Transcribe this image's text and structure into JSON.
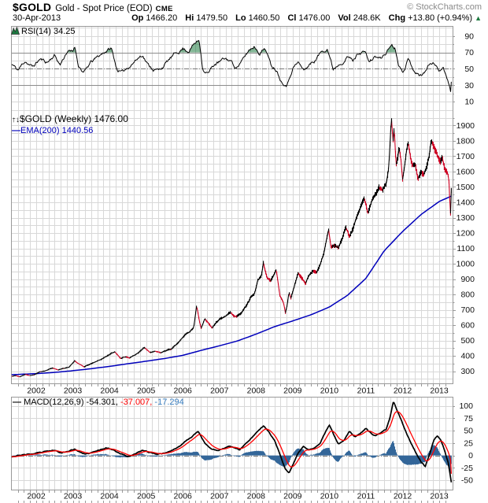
{
  "header": {
    "symbol": "$GOLD",
    "description": "Gold - Spot Price (EOD)",
    "exchange": "CME",
    "copyright": "© StockCharts.com",
    "date": "30-Apr-2013",
    "quote": [
      {
        "label": "Op",
        "value": "1466.20"
      },
      {
        "label": "Hi",
        "value": "1479.50"
      },
      {
        "label": "Lo",
        "value": "1460.50"
      },
      {
        "label": "Cl",
        "value": "1476.00"
      },
      {
        "label": "Vol",
        "value": "248.6K"
      },
      {
        "label": "Chg",
        "value": "+13.80 (+0.94%)"
      }
    ],
    "chg_icon": "▲",
    "chg_direction": "up"
  },
  "legend": {
    "rsi": {
      "label": "RSI(14)",
      "value": "34.25"
    },
    "price": {
      "label": "$GOLD (Weekly)",
      "value": "1476.00"
    },
    "ema": {
      "label": "EMA(200)",
      "value": "1440.56"
    },
    "macd": {
      "label": "MACD(12,26,9)",
      "v1": "-54.301",
      "v2": "-37.007",
      "v3": "-17.294"
    }
  },
  "colors": {
    "price_up": "#000000",
    "price_down": "#cc0022",
    "ema": "#0000bb",
    "rsi": "#000000",
    "rsi_fill": "#1d7a40",
    "macd": "#000000",
    "signal": "#ff0000",
    "histogram": "#336699",
    "legend_hist": "#3a7fc1",
    "grid": "#d8d8d8",
    "axis": "#999999",
    "level": "#8c8c8c",
    "dashdot": "#777777",
    "chg_up": "#1c7a3f"
  },
  "x_axis": {
    "start": 2001.33,
    "end": 2013.33,
    "year_labels": [
      "2002",
      "2003",
      "2004",
      "2005",
      "2006",
      "2007",
      "2008",
      "2009",
      "2010",
      "2011",
      "2012",
      "2013"
    ]
  },
  "chart_data": [
    {
      "id": "rsi",
      "type": "line",
      "title": "RSI(14)",
      "current": 34.25,
      "y_range": [
        0,
        100
      ],
      "yticks": [
        90,
        70,
        50,
        30,
        10
      ],
      "levels": {
        "overbought": 70,
        "mid": 50,
        "oversold": 30
      },
      "texture": 3.2,
      "anchors": [
        [
          2001.35,
          55
        ],
        [
          2001.5,
          48
        ],
        [
          2001.7,
          60
        ],
        [
          2001.9,
          52
        ],
        [
          2002.1,
          62
        ],
        [
          2002.3,
          58
        ],
        [
          2002.5,
          67
        ],
        [
          2002.65,
          55
        ],
        [
          2002.85,
          72
        ],
        [
          2003.0,
          70
        ],
        [
          2003.05,
          78
        ],
        [
          2003.15,
          55
        ],
        [
          2003.3,
          45
        ],
        [
          2003.5,
          58
        ],
        [
          2003.7,
          65
        ],
        [
          2003.9,
          72
        ],
        [
          2004.05,
          75
        ],
        [
          2004.2,
          50
        ],
        [
          2004.35,
          45
        ],
        [
          2004.5,
          52
        ],
        [
          2004.7,
          60
        ],
        [
          2004.9,
          68
        ],
        [
          2005.05,
          55
        ],
        [
          2005.2,
          50
        ],
        [
          2005.35,
          48
        ],
        [
          2005.5,
          55
        ],
        [
          2005.65,
          62
        ],
        [
          2005.85,
          70
        ],
        [
          2006.0,
          75
        ],
        [
          2006.15,
          72
        ],
        [
          2006.3,
          80
        ],
        [
          2006.45,
          85
        ],
        [
          2006.55,
          50
        ],
        [
          2006.7,
          45
        ],
        [
          2006.85,
          55
        ],
        [
          2007.0,
          58
        ],
        [
          2007.15,
          62
        ],
        [
          2007.3,
          60
        ],
        [
          2007.45,
          52
        ],
        [
          2007.6,
          58
        ],
        [
          2007.8,
          72
        ],
        [
          2007.95,
          78
        ],
        [
          2008.1,
          70
        ],
        [
          2008.25,
          76
        ],
        [
          2008.4,
          55
        ],
        [
          2008.55,
          50
        ],
        [
          2008.7,
          35
        ],
        [
          2008.85,
          32
        ],
        [
          2009.0,
          52
        ],
        [
          2009.15,
          58
        ],
        [
          2009.3,
          48
        ],
        [
          2009.45,
          55
        ],
        [
          2009.6,
          60
        ],
        [
          2009.8,
          72
        ],
        [
          2009.95,
          76
        ],
        [
          2010.1,
          50
        ],
        [
          2010.3,
          58
        ],
        [
          2010.5,
          65
        ],
        [
          2010.65,
          60
        ],
        [
          2010.8,
          70
        ],
        [
          2010.95,
          72
        ],
        [
          2011.1,
          58
        ],
        [
          2011.25,
          65
        ],
        [
          2011.4,
          62
        ],
        [
          2011.55,
          70
        ],
        [
          2011.7,
          80
        ],
        [
          2011.8,
          75
        ],
        [
          2011.9,
          55
        ],
        [
          2012.0,
          48
        ],
        [
          2012.15,
          62
        ],
        [
          2012.3,
          50
        ],
        [
          2012.45,
          42
        ],
        [
          2012.6,
          45
        ],
        [
          2012.75,
          58
        ],
        [
          2012.9,
          55
        ],
        [
          2013.0,
          50
        ],
        [
          2013.1,
          52
        ],
        [
          2013.2,
          42
        ],
        [
          2013.28,
          30
        ],
        [
          2013.31,
          22
        ],
        [
          2013.33,
          34.25
        ]
      ]
    },
    {
      "id": "price",
      "type": "candlestick_line",
      "title": "$GOLD (Weekly)",
      "close": 1476.0,
      "ema_last": 1440.56,
      "y_range": [
        220,
        2000
      ],
      "yticks": [
        1900,
        1800,
        1700,
        1600,
        1500,
        1400,
        1300,
        1200,
        1100,
        1000,
        900,
        800,
        700,
        600,
        500,
        400,
        300
      ],
      "texture_pct": 0.8,
      "candles_anchors": [
        [
          2001.33,
          268
        ],
        [
          2001.45,
          272
        ],
        [
          2001.55,
          264
        ],
        [
          2001.7,
          281
        ],
        [
          2001.8,
          273
        ],
        [
          2001.95,
          278
        ],
        [
          2002.1,
          295
        ],
        [
          2002.25,
          305
        ],
        [
          2002.35,
          313
        ],
        [
          2002.45,
          322
        ],
        [
          2002.6,
          310
        ],
        [
          2002.75,
          318
        ],
        [
          2002.9,
          324
        ],
        [
          2003.05,
          368
        ],
        [
          2003.12,
          352
        ],
        [
          2003.3,
          330
        ],
        [
          2003.45,
          344
        ],
        [
          2003.6,
          357
        ],
        [
          2003.75,
          375
        ],
        [
          2003.95,
          398
        ],
        [
          2004.05,
          415
        ],
        [
          2004.15,
          426
        ],
        [
          2004.3,
          388
        ],
        [
          2004.45,
          396
        ],
        [
          2004.55,
          387
        ],
        [
          2004.7,
          406
        ],
        [
          2004.85,
          432
        ],
        [
          2004.95,
          455
        ],
        [
          2005.1,
          422
        ],
        [
          2005.25,
          428
        ],
        [
          2005.4,
          419
        ],
        [
          2005.55,
          436
        ],
        [
          2005.7,
          446
        ],
        [
          2005.85,
          478
        ],
        [
          2006.0,
          518
        ],
        [
          2006.1,
          546
        ],
        [
          2006.2,
          556
        ],
        [
          2006.3,
          586
        ],
        [
          2006.38,
          726
        ],
        [
          2006.45,
          632
        ],
        [
          2006.5,
          575
        ],
        [
          2006.6,
          636
        ],
        [
          2006.7,
          616
        ],
        [
          2006.8,
          582
        ],
        [
          2006.9,
          614
        ],
        [
          2007.0,
          640
        ],
        [
          2007.1,
          652
        ],
        [
          2007.2,
          666
        ],
        [
          2007.3,
          686
        ],
        [
          2007.4,
          656
        ],
        [
          2007.5,
          662
        ],
        [
          2007.6,
          681
        ],
        [
          2007.75,
          736
        ],
        [
          2007.85,
          782
        ],
        [
          2007.95,
          801
        ],
        [
          2008.05,
          892
        ],
        [
          2008.15,
          926
        ],
        [
          2008.2,
          1012
        ],
        [
          2008.3,
          906
        ],
        [
          2008.4,
          882
        ],
        [
          2008.5,
          932
        ],
        [
          2008.55,
          964
        ],
        [
          2008.65,
          792
        ],
        [
          2008.75,
          746
        ],
        [
          2008.8,
          681
        ],
        [
          2008.85,
          732
        ],
        [
          2008.9,
          816
        ],
        [
          2008.95,
          774
        ],
        [
          2009.05,
          856
        ],
        [
          2009.15,
          942
        ],
        [
          2009.25,
          902
        ],
        [
          2009.35,
          872
        ],
        [
          2009.45,
          931
        ],
        [
          2009.55,
          952
        ],
        [
          2009.65,
          944
        ],
        [
          2009.75,
          996
        ],
        [
          2009.85,
          1062
        ],
        [
          2009.95,
          1182
        ],
        [
          2009.98,
          1216
        ],
        [
          2010.05,
          1096
        ],
        [
          2010.15,
          1116
        ],
        [
          2010.25,
          1102
        ],
        [
          2010.35,
          1162
        ],
        [
          2010.45,
          1242
        ],
        [
          2010.55,
          1182
        ],
        [
          2010.65,
          1236
        ],
        [
          2010.75,
          1302
        ],
        [
          2010.85,
          1366
        ],
        [
          2010.95,
          1422
        ],
        [
          2011.0,
          1392
        ],
        [
          2011.05,
          1332
        ],
        [
          2011.15,
          1412
        ],
        [
          2011.25,
          1442
        ],
        [
          2011.35,
          1502
        ],
        [
          2011.45,
          1492
        ],
        [
          2011.55,
          1532
        ],
        [
          2011.62,
          1622
        ],
        [
          2011.68,
          1882
        ],
        [
          2011.7,
          1920
        ],
        [
          2011.74,
          1782
        ],
        [
          2011.77,
          1878
        ],
        [
          2011.82,
          1622
        ],
        [
          2011.87,
          1682
        ],
        [
          2011.9,
          1752
        ],
        [
          2011.95,
          1682
        ],
        [
          2012.0,
          1546
        ],
        [
          2012.05,
          1632
        ],
        [
          2012.1,
          1722
        ],
        [
          2012.15,
          1790
        ],
        [
          2012.25,
          1662
        ],
        [
          2012.35,
          1642
        ],
        [
          2012.42,
          1541
        ],
        [
          2012.5,
          1582
        ],
        [
          2012.58,
          1566
        ],
        [
          2012.65,
          1622
        ],
        [
          2012.72,
          1682
        ],
        [
          2012.78,
          1792
        ],
        [
          2012.85,
          1752
        ],
        [
          2012.95,
          1702
        ],
        [
          2013.02,
          1656
        ],
        [
          2013.08,
          1682
        ],
        [
          2013.15,
          1612
        ],
        [
          2013.22,
          1592
        ],
        [
          2013.26,
          1562
        ],
        [
          2013.29,
          1402
        ],
        [
          2013.31,
          1321
        ],
        [
          2013.33,
          1476
        ]
      ],
      "ema_anchors": [
        [
          2001.33,
          278
        ],
        [
          2002,
          285
        ],
        [
          2002.5,
          293
        ],
        [
          2003,
          304
        ],
        [
          2003.5,
          317
        ],
        [
          2004,
          332
        ],
        [
          2004.5,
          349
        ],
        [
          2005,
          366
        ],
        [
          2005.5,
          383
        ],
        [
          2006,
          404
        ],
        [
          2006.5,
          436
        ],
        [
          2007,
          466
        ],
        [
          2007.5,
          498
        ],
        [
          2008,
          542
        ],
        [
          2008.5,
          590
        ],
        [
          2009,
          628
        ],
        [
          2009.5,
          668
        ],
        [
          2010,
          718
        ],
        [
          2010.5,
          795
        ],
        [
          2011,
          905
        ],
        [
          2011.5,
          1085
        ],
        [
          2012,
          1210
        ],
        [
          2012.5,
          1320
        ],
        [
          2013,
          1405
        ],
        [
          2013.33,
          1440.56
        ]
      ]
    },
    {
      "id": "macd",
      "type": "line_histogram",
      "title": "MACD(12,26,9)",
      "current": {
        "macd": -54.301,
        "signal": -37.007,
        "histogram": -17.294
      },
      "y_range": [
        -70,
        118
      ],
      "yticks": [
        100,
        75,
        50,
        25,
        0,
        -25,
        -50
      ],
      "texture": 1.4,
      "anchors": [
        [
          2001.33,
          -2
        ],
        [
          2001.6,
          1
        ],
        [
          2001.9,
          3
        ],
        [
          2002.1,
          5
        ],
        [
          2002.3,
          8
        ],
        [
          2002.5,
          10
        ],
        [
          2002.7,
          6
        ],
        [
          2002.9,
          9
        ],
        [
          2003.05,
          13
        ],
        [
          2003.2,
          7
        ],
        [
          2003.35,
          2
        ],
        [
          2003.5,
          5
        ],
        [
          2003.7,
          10
        ],
        [
          2003.9,
          16
        ],
        [
          2004.1,
          12
        ],
        [
          2004.3,
          4
        ],
        [
          2004.5,
          -2
        ],
        [
          2004.7,
          3
        ],
        [
          2004.9,
          10
        ],
        [
          2005.1,
          6
        ],
        [
          2005.3,
          3
        ],
        [
          2005.5,
          5
        ],
        [
          2005.7,
          10
        ],
        [
          2005.9,
          18
        ],
        [
          2006.1,
          30
        ],
        [
          2006.3,
          42
        ],
        [
          2006.42,
          48
        ],
        [
          2006.6,
          25
        ],
        [
          2006.8,
          12
        ],
        [
          2006.95,
          10
        ],
        [
          2007.1,
          14
        ],
        [
          2007.25,
          20
        ],
        [
          2007.4,
          16
        ],
        [
          2007.55,
          12
        ],
        [
          2007.7,
          22
        ],
        [
          2007.9,
          38
        ],
        [
          2008.05,
          50
        ],
        [
          2008.2,
          60
        ],
        [
          2008.35,
          48
        ],
        [
          2008.5,
          30
        ],
        [
          2008.6,
          12
        ],
        [
          2008.7,
          -8
        ],
        [
          2008.8,
          -28
        ],
        [
          2008.9,
          -35
        ],
        [
          2009.0,
          -20
        ],
        [
          2009.15,
          5
        ],
        [
          2009.3,
          18
        ],
        [
          2009.45,
          12
        ],
        [
          2009.6,
          15
        ],
        [
          2009.75,
          25
        ],
        [
          2009.9,
          48
        ],
        [
          2010.0,
          60
        ],
        [
          2010.1,
          45
        ],
        [
          2010.25,
          22
        ],
        [
          2010.4,
          30
        ],
        [
          2010.55,
          48
        ],
        [
          2010.7,
          38
        ],
        [
          2010.85,
          45
        ],
        [
          2011.0,
          55
        ],
        [
          2011.1,
          48
        ],
        [
          2011.25,
          40
        ],
        [
          2011.4,
          45
        ],
        [
          2011.55,
          52
        ],
        [
          2011.65,
          75
        ],
        [
          2011.75,
          110
        ],
        [
          2011.85,
          90
        ],
        [
          2011.95,
          75
        ],
        [
          2012.05,
          55
        ],
        [
          2012.2,
          30
        ],
        [
          2012.35,
          8
        ],
        [
          2012.5,
          -12
        ],
        [
          2012.62,
          -22
        ],
        [
          2012.75,
          5
        ],
        [
          2012.85,
          30
        ],
        [
          2012.95,
          40
        ],
        [
          2013.05,
          30
        ],
        [
          2013.15,
          10
        ],
        [
          2013.25,
          -15
        ],
        [
          2013.3,
          -40
        ],
        [
          2013.33,
          -54.301
        ]
      ]
    }
  ]
}
